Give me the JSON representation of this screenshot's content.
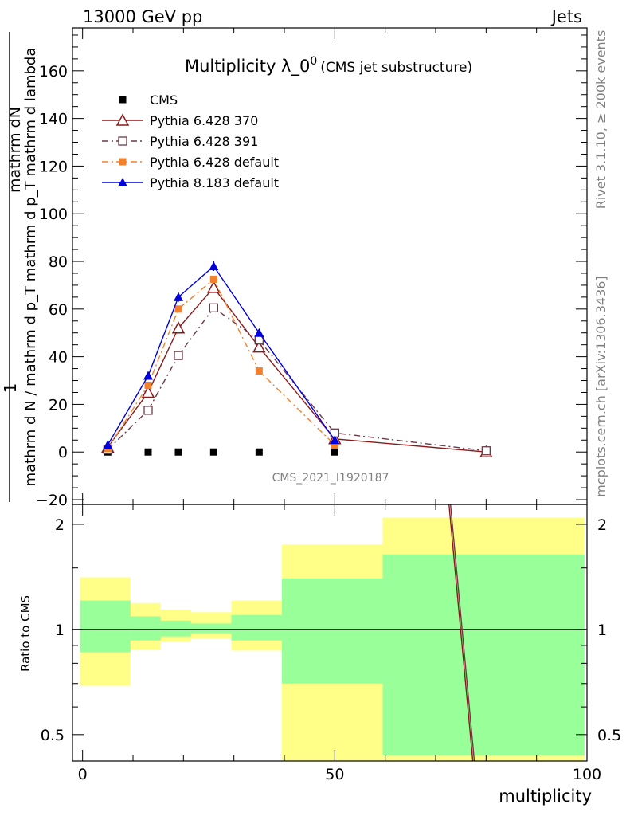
{
  "header": {
    "energy_label": "13000 GeV pp",
    "process_label": "Jets"
  },
  "side_text": {
    "rivet_label": "Rivet 3.1.10, ≥ 200k events",
    "mcplots_label": "mcplots.cern.ch [arXiv:1306.3436]"
  },
  "chart_data": [
    {
      "panel": "main",
      "type": "line",
      "title": "Multiplicity λ_0",
      "title_superscript": "0",
      "subtitle": "(CMS jet substructure)",
      "watermark": "CMS_2021_I1920187",
      "ylabel": {
        "numerator": "mathrm dN",
        "numerator_one": "1",
        "denominator": "mathrm d N / mathrm d p_T mathrm d p_T mathrm d lambda"
      },
      "ylim": [
        -22,
        178
      ],
      "yticks": [
        -20,
        0,
        20,
        40,
        60,
        80,
        100,
        120,
        140,
        160
      ],
      "ytick_labels": [
        "−20",
        "0",
        "20",
        "40",
        "60",
        "80",
        "100",
        "120",
        "140",
        "160"
      ],
      "xlim": [
        -2,
        100
      ],
      "legend_position": "top-left",
      "series": [
        {
          "name": "CMS",
          "style": "square-filled",
          "color": "#000000",
          "x": [
            5,
            13,
            19,
            26,
            35,
            50,
            80
          ],
          "y": [
            0,
            0,
            0,
            0,
            0,
            0,
            0
          ]
        },
        {
          "name": "Pythia 6.428 370",
          "style": "triangle-open-solid",
          "color": "#8b1a1a",
          "x": [
            5,
            13,
            19,
            26,
            35,
            50,
            80
          ],
          "y": [
            2,
            25,
            52,
            69,
            44,
            5.5,
            0
          ]
        },
        {
          "name": "Pythia 6.428 391",
          "style": "square-open-dashdot",
          "color": "#6b3a46",
          "x": [
            5,
            13,
            19,
            26,
            35,
            50,
            80
          ],
          "y": [
            1,
            17.5,
            40.5,
            60.5,
            47,
            8,
            0.5
          ]
        },
        {
          "name": "Pythia 6.428 default",
          "style": "square-filled-dashdot",
          "color": "#f4802b",
          "x": [
            5,
            13,
            19,
            26,
            35,
            50
          ],
          "y": [
            1.5,
            28,
            60,
            72.5,
            34,
            3
          ]
        },
        {
          "name": "Pythia 8.183 default",
          "style": "triangle-filled-solid",
          "color": "#0000dd",
          "x": [
            5,
            13,
            19,
            26,
            35,
            50
          ],
          "y": [
            3,
            32,
            65,
            78,
            50,
            5
          ],
          "yerr": [
            0.8,
            1.5,
            2,
            2,
            1.5,
            0.8
          ]
        }
      ]
    },
    {
      "panel": "ratio",
      "type": "area",
      "ylabel": "Ratio to CMS",
      "xlabel": "multiplicity",
      "log_y": true,
      "ylim": [
        0.42,
        2.28
      ],
      "yticks": [
        0.5,
        1,
        2
      ],
      "ytick_labels": [
        "0.5",
        "1",
        "2"
      ],
      "xlim": [
        -2,
        100
      ],
      "xticks": [
        0,
        50,
        100
      ],
      "xtick_labels": [
        "0",
        "50",
        "100"
      ],
      "bands": [
        {
          "x0": -0.5,
          "x1": 9.5,
          "yellow": [
            0.69,
            1.41
          ],
          "green": [
            0.86,
            1.21
          ]
        },
        {
          "x0": 9.5,
          "x1": 15.5,
          "yellow": [
            0.875,
            1.19
          ],
          "green": [
            0.93,
            1.09
          ]
        },
        {
          "x0": 15.5,
          "x1": 21.5,
          "yellow": [
            0.92,
            1.14
          ],
          "green": [
            0.955,
            1.06
          ]
        },
        {
          "x0": 21.5,
          "x1": 29.5,
          "yellow": [
            0.94,
            1.12
          ],
          "green": [
            0.975,
            1.04
          ]
        },
        {
          "x0": 29.5,
          "x1": 39.5,
          "yellow": [
            0.87,
            1.21
          ],
          "green": [
            0.93,
            1.1
          ]
        },
        {
          "x0": 39.5,
          "x1": 59.5,
          "yellow": [
            0.38,
            1.75
          ],
          "green": [
            0.7,
            1.4
          ]
        },
        {
          "x0": 59.5,
          "x1": 99.5,
          "yellow": [
            0.38,
            2.09
          ],
          "green": [
            0.435,
            1.64
          ]
        }
      ],
      "ratio_lines": [
        {
          "color": "#8b1a1a",
          "from": [
            72.5,
            2.4
          ],
          "to": [
            77.5,
            0.4
          ]
        },
        {
          "color": "#6b3a46",
          "from": [
            72.8,
            2.4
          ],
          "to": [
            77.8,
            0.4
          ]
        }
      ]
    }
  ]
}
